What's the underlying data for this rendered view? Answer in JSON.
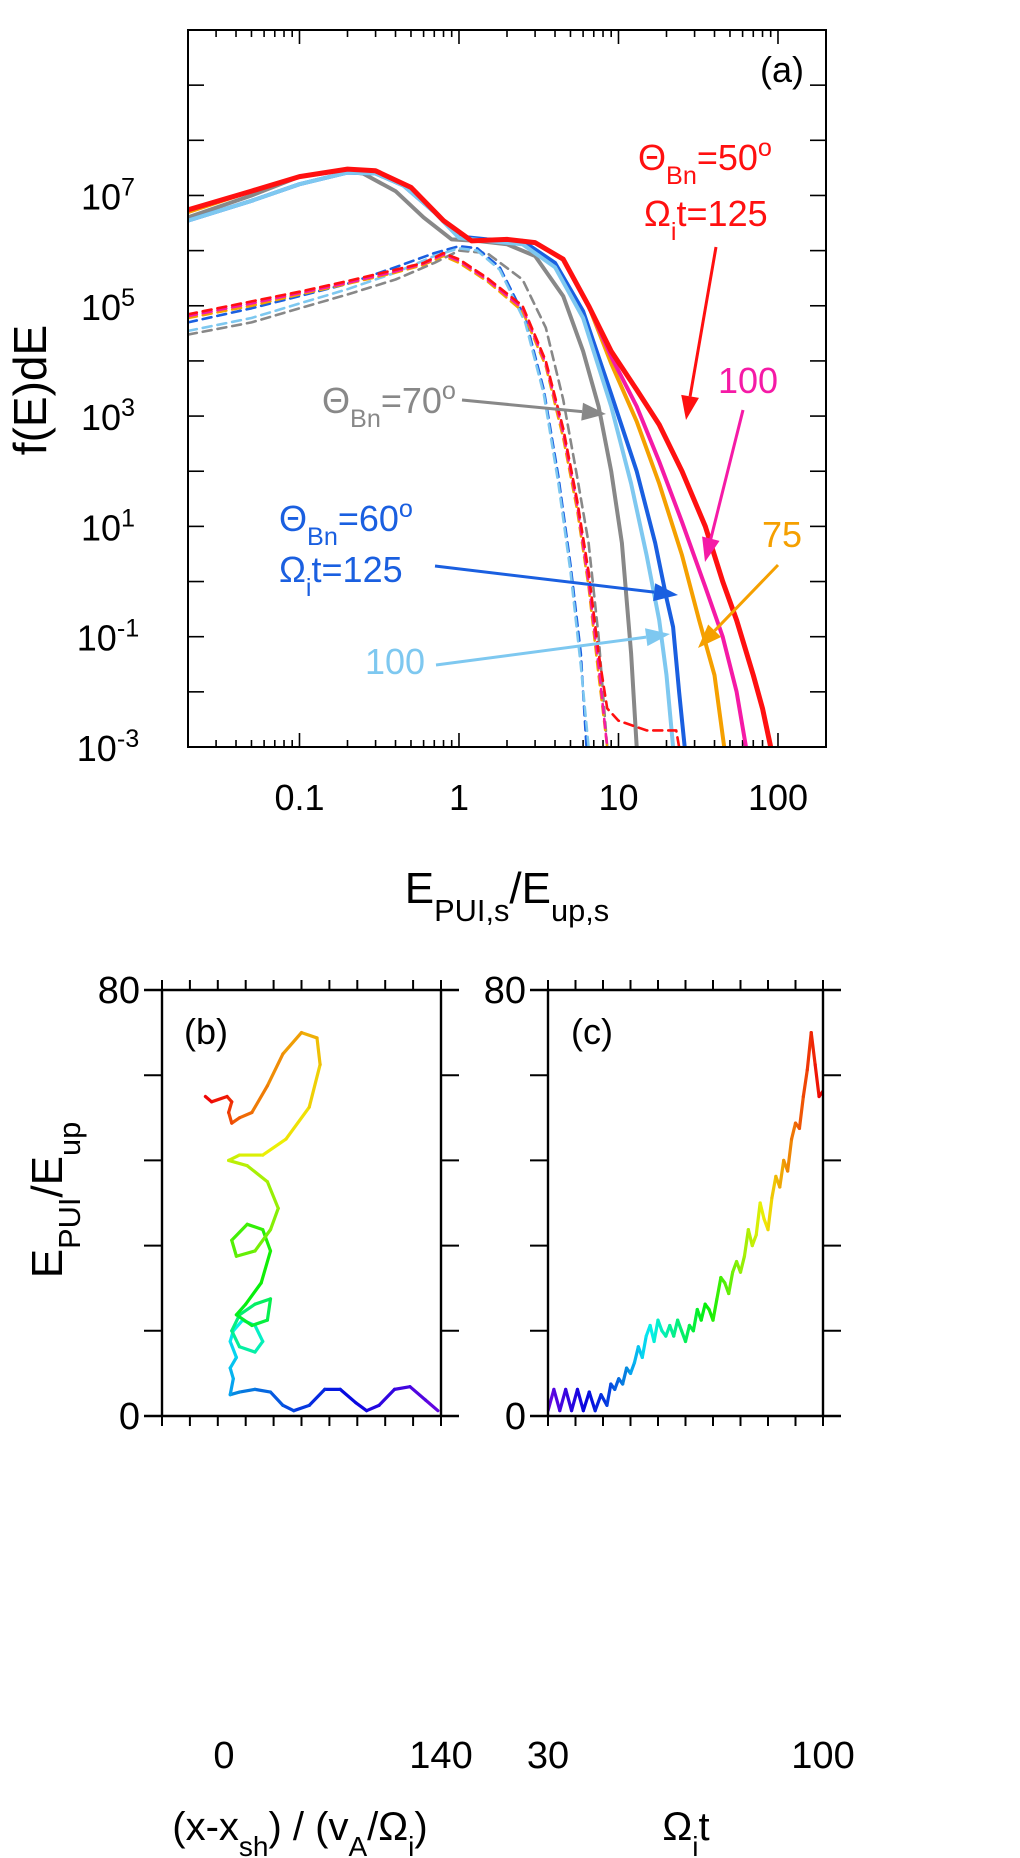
{
  "chart_data": [
    {
      "panel": "a",
      "type": "line",
      "panel_label": "(a)",
      "xscale": "log",
      "yscale": "log",
      "xlim": [
        0.02,
        200
      ],
      "ylim": [
        0.001,
        10000000000
      ],
      "xlabel": {
        "main": "E",
        "sub1": "PUI,s",
        "mid": "/E",
        "sub2": "up,s"
      },
      "ylabel": "f(E)dE",
      "xticks": [
        {
          "v": 0.1,
          "label": "0.1"
        },
        {
          "v": 1,
          "label": "1"
        },
        {
          "v": 10,
          "label": "10"
        },
        {
          "v": 100,
          "label": "100"
        }
      ],
      "yticks": [
        {
          "v": 0.001,
          "base": "10",
          "exp": "-3"
        },
        {
          "v": 0.1,
          "base": "10",
          "exp": "-1"
        },
        {
          "v": 10,
          "base": "10",
          "exp": "1"
        },
        {
          "v": 1000,
          "base": "10",
          "exp": "3"
        },
        {
          "v": 100000,
          "base": "10",
          "exp": "5"
        },
        {
          "v": 10000000,
          "base": "10",
          "exp": "7"
        }
      ],
      "series": [
        {
          "name": "ThetaBn=70, Omega_i t=125, total",
          "color": "#888888",
          "style": "solid",
          "x": [
            0.02,
            0.05,
            0.1,
            0.17,
            0.25,
            0.4,
            0.6,
            0.9,
            1.3,
            2,
            3,
            4.5,
            6,
            7.5,
            9,
            10.5,
            12,
            13
          ],
          "y": [
            4000000,
            10000000,
            22000000,
            28000000,
            25000000,
            12000000,
            4000000,
            1600000,
            1500000,
            1300000,
            800000,
            150000,
            15000,
            1500,
            100,
            5,
            0.05,
            0.001
          ]
        },
        {
          "name": "ThetaBn=70, Omega_i t=125, dashed",
          "color": "#888888",
          "style": "dashed",
          "x": [
            0.02,
            0.05,
            0.1,
            0.2,
            0.4,
            0.7,
            1,
            1.5,
            2.5,
            3.5,
            4.5,
            5.5,
            6.5,
            7.5,
            8.5
          ],
          "y": [
            30000,
            50000,
            90000,
            160000,
            300000,
            600000,
            1000000,
            900000,
            300000,
            40000,
            2000,
            80,
            5,
            0.1,
            0.001
          ]
        },
        {
          "name": "ThetaBn=60, Omega_i t=125, total",
          "color": "#1a5fe0",
          "style": "solid",
          "x": [
            0.02,
            0.05,
            0.1,
            0.2,
            0.3,
            0.45,
            0.7,
            1,
            1.5,
            2.5,
            4,
            6,
            9,
            13,
            17,
            20,
            22,
            24,
            26
          ],
          "y": [
            3500000,
            8000000,
            16000000,
            26000000,
            25000000,
            15000000,
            5000000,
            1800000,
            1600000,
            1500000,
            600000,
            80000,
            2500,
            100,
            5,
            0.5,
            0.15,
            0.01,
            0.001
          ]
        },
        {
          "name": "ThetaBn=60, Omega_i t=125, dashed",
          "color": "#1a5fe0",
          "style": "dashed",
          "x": [
            0.02,
            0.05,
            0.1,
            0.2,
            0.4,
            0.7,
            1,
            1.3,
            1.8,
            2.6,
            3.4,
            4.2,
            5,
            5.8,
            6.3
          ],
          "y": [
            50000,
            90000,
            150000,
            250000,
            500000,
            900000,
            1200000,
            1100000,
            500000,
            60000,
            3000,
            80,
            2,
            0.05,
            0.001
          ]
        },
        {
          "name": "ThetaBn=60, Omega_i t=100, total",
          "color": "#7ec8f0",
          "style": "solid",
          "x": [
            0.02,
            0.05,
            0.1,
            0.2,
            0.3,
            0.45,
            0.7,
            1,
            1.5,
            2.5,
            4,
            6,
            9,
            12,
            15,
            18,
            20,
            22
          ],
          "y": [
            3500000,
            8000000,
            16000000,
            26000000,
            25000000,
            15000000,
            5000000,
            1700000,
            1500000,
            1300000,
            500000,
            60000,
            1500,
            60,
            3,
            0.2,
            0.02,
            0.001
          ]
        },
        {
          "name": "ThetaBn=60, Omega_i t=100, dashed",
          "color": "#7ec8f0",
          "style": "dashed",
          "x": [
            0.02,
            0.05,
            0.1,
            0.2,
            0.4,
            0.7,
            1,
            1.3,
            1.8,
            2.6,
            3.4,
            4.2,
            5,
            5.8,
            6.5
          ],
          "y": [
            35000,
            60000,
            110000,
            200000,
            400000,
            800000,
            1100000,
            1000000,
            450000,
            50000,
            2500,
            60,
            1.5,
            0.03,
            0.001
          ]
        },
        {
          "name": "ThetaBn=50, Omega_i t=75, total",
          "color": "#f5a000",
          "style": "solid",
          "x": [
            0.02,
            0.05,
            0.1,
            0.2,
            0.3,
            0.5,
            0.8,
            1.2,
            2,
            3,
            4.5,
            6.5,
            9,
            13,
            18,
            25,
            32,
            40,
            46
          ],
          "y": [
            5000000,
            12000000,
            22000000,
            30000000,
            28000000,
            14000000,
            3500000,
            1500000,
            1600000,
            1400000,
            700000,
            100000,
            9000,
            800,
            60,
            3,
            0.2,
            0.02,
            0.001
          ]
        },
        {
          "name": "ThetaBn=50, Omega_i t=75, dashed",
          "color": "#f5a000",
          "style": "dashed",
          "x": [
            0.02,
            0.05,
            0.1,
            0.2,
            0.4,
            0.6,
            0.8,
            1,
            1.5,
            2.5,
            3.5,
            4.5,
            5.5,
            6.5,
            7.5,
            8.5
          ],
          "y": [
            60000,
            100000,
            160000,
            250000,
            400000,
            550000,
            800000,
            600000,
            280000,
            80000,
            8000,
            400,
            20,
            0.8,
            0.02,
            0.001
          ]
        },
        {
          "name": "ThetaBn=50, Omega_i t=100, total",
          "color": "#f51aa6",
          "style": "solid",
          "x": [
            0.02,
            0.05,
            0.1,
            0.2,
            0.3,
            0.5,
            0.8,
            1.2,
            2,
            3,
            4.5,
            6.5,
            9,
            13,
            18,
            25,
            35,
            45,
            55,
            63
          ],
          "y": [
            5500000,
            12000000,
            22000000,
            30000000,
            28000000,
            14000000,
            3500000,
            1500000,
            1600000,
            1400000,
            700000,
            100000,
            12000,
            1500,
            150,
            12,
            0.8,
            0.1,
            0.01,
            0.001
          ]
        },
        {
          "name": "ThetaBn=50, Omega_i t=100, dashed",
          "color": "#f51aa6",
          "style": "dashed",
          "x": [
            0.02,
            0.05,
            0.1,
            0.2,
            0.4,
            0.6,
            0.8,
            1,
            1.5,
            2.5,
            3.5,
            4.5,
            5.5,
            6.5,
            7.5,
            8.5
          ],
          "y": [
            65000,
            110000,
            170000,
            260000,
            420000,
            580000,
            850000,
            650000,
            300000,
            90000,
            9000,
            500,
            25,
            1,
            0.03,
            0.001
          ]
        },
        {
          "name": "ThetaBn=50, Omega_i t=125, total",
          "color": "#ff1010",
          "style": "solid",
          "x": [
            0.02,
            0.05,
            0.1,
            0.2,
            0.3,
            0.5,
            0.8,
            1.2,
            2,
            3,
            4.5,
            6.5,
            9,
            13,
            18,
            25,
            35,
            45,
            55,
            70,
            80,
            90
          ],
          "y": [
            5500000,
            12000000,
            22000000,
            30000000,
            28000000,
            14000000,
            3500000,
            1500000,
            1600000,
            1400000,
            700000,
            100000,
            15000,
            3000,
            700,
            100,
            10,
            1,
            0.2,
            0.02,
            0.005,
            0.001
          ]
        },
        {
          "name": "ThetaBn=50, Omega_i t=125, dashed",
          "color": "#ff1010",
          "style": "dashed",
          "x": [
            0.02,
            0.05,
            0.1,
            0.2,
            0.4,
            0.6,
            0.8,
            1,
            1.5,
            2.5,
            3.5,
            4.5,
            5.5,
            6.5,
            7.5,
            8.5,
            10,
            15,
            23,
            24
          ],
          "y": [
            70000,
            120000,
            180000,
            280000,
            450000,
            600000,
            900000,
            700000,
            320000,
            100000,
            10000,
            600,
            30,
            1.5,
            0.05,
            0.005,
            0.003,
            0.002,
            0.002,
            0.001
          ]
        }
      ],
      "annotations": [
        {
          "id": "th50",
          "color": "#ff1010",
          "sym": "Θ",
          "sub": "Bn",
          "text": "=50",
          "sup": "o"
        },
        {
          "id": "om50",
          "color": "#ff1010",
          "sym": "Ω",
          "sub": "i",
          "text": "t=125"
        },
        {
          "id": "th70",
          "color": "#888888",
          "sym": "Θ",
          "sub": "Bn",
          "text": "=70",
          "sup": "o"
        },
        {
          "id": "th60",
          "color": "#1a5fe0",
          "sym": "Θ",
          "sub": "Bn",
          "text": "=60",
          "sup": "o"
        },
        {
          "id": "om60",
          "color": "#1a5fe0",
          "sym": "Ω",
          "sub": "i",
          "text": "t=125"
        },
        {
          "id": "m100",
          "color": "#f51aa6",
          "text": "100"
        },
        {
          "id": "o75",
          "color": "#f5a000",
          "text": "75"
        },
        {
          "id": "l100",
          "color": "#7ec8f0",
          "text": "100"
        }
      ]
    },
    {
      "panel": "b",
      "type": "line",
      "panel_label": "(b)",
      "xlim": [
        -40,
        140
      ],
      "ylim": [
        0,
        80
      ],
      "xticks": [
        {
          "v": 0,
          "label": "0"
        },
        {
          "v": 140,
          "label": "140"
        }
      ],
      "yticks": [
        {
          "v": 0,
          "label": "0"
        },
        {
          "v": 80,
          "label": "80"
        }
      ],
      "xlabel": {
        "p1": "(x-x",
        "sub1": "sh",
        "p2": ") / (v",
        "sub2": "A",
        "p3": "/Ω",
        "sub3": "i",
        "p4": ")"
      },
      "ylabel": {
        "main": "E",
        "sub1": "PUI",
        "mid": "/E",
        "sub2": "up"
      },
      "colormap": "rainbow, violet (early) to red (late)",
      "x": [
        138,
        130,
        120,
        110,
        100,
        92,
        85,
        75,
        65,
        55,
        45,
        38,
        30,
        20,
        10,
        4,
        6,
        4,
        8,
        4,
        6,
        12,
        20,
        25,
        20,
        10,
        5,
        10,
        20,
        30,
        28,
        18,
        8,
        14,
        24,
        30,
        25,
        15,
        5,
        8,
        20,
        30,
        35,
        28,
        15,
        3,
        10,
        25,
        40,
        55,
        62,
        60,
        50,
        38,
        28,
        18,
        10,
        5,
        3,
        5,
        2,
        -8,
        -12
      ],
      "y": [
        1,
        3,
        5.5,
        5,
        2,
        1,
        2.5,
        5,
        5,
        2,
        1,
        2,
        4.5,
        5,
        4.5,
        4,
        7,
        9,
        11,
        14,
        16,
        18,
        17,
        14,
        12,
        13,
        16,
        19,
        21,
        22,
        18,
        17,
        19,
        21,
        25,
        31,
        35,
        36,
        33,
        30,
        31,
        35,
        39,
        44,
        47,
        48,
        49,
        49,
        52,
        58,
        66,
        71,
        72,
        68,
        62,
        57,
        56,
        55,
        57,
        59,
        60,
        59,
        60
      ]
    },
    {
      "panel": "c",
      "type": "line",
      "panel_label": "(c)",
      "xlim": [
        30,
        100
      ],
      "ylim": [
        0,
        80
      ],
      "xticks": [
        {
          "v": 30,
          "label": "30"
        },
        {
          "v": 100,
          "label": "100"
        }
      ],
      "yticks": [
        {
          "v": 0,
          "label": "0"
        },
        {
          "v": 80,
          "label": "80"
        }
      ],
      "xlabel": {
        "sym": "Ω",
        "sub": "i",
        "text": "t"
      },
      "colormap": "rainbow, violet (early) to red (late)",
      "x": [
        30,
        31.5,
        33,
        34.5,
        36,
        37.5,
        39,
        40.5,
        42,
        43.5,
        45,
        46,
        47,
        48,
        49,
        50,
        51,
        52,
        53,
        54,
        55,
        56,
        57,
        58,
        59,
        60,
        61,
        62,
        63,
        64,
        65,
        66,
        67,
        68,
        69,
        70,
        71,
        72,
        73,
        74,
        75,
        76,
        77,
        78,
        79,
        80,
        81,
        82,
        83,
        84,
        85,
        86,
        87,
        88,
        89,
        90,
        91,
        92,
        93,
        94,
        95,
        96,
        97,
        98,
        99,
        100
      ],
      "y": [
        1,
        5,
        1,
        5,
        1,
        5,
        1,
        4.5,
        1,
        4,
        2,
        6,
        5,
        7,
        6,
        9,
        8,
        10,
        13,
        11,
        15,
        17,
        14,
        18,
        16,
        15,
        17,
        15,
        18,
        16,
        14,
        17,
        16,
        20,
        18,
        21,
        20,
        18,
        22,
        26,
        25,
        23,
        27,
        29,
        27,
        30,
        35,
        32,
        34,
        40,
        37,
        35,
        41,
        45,
        43,
        48,
        46,
        52,
        55,
        54,
        60,
        65,
        72,
        66,
        60,
        61
      ]
    }
  ]
}
